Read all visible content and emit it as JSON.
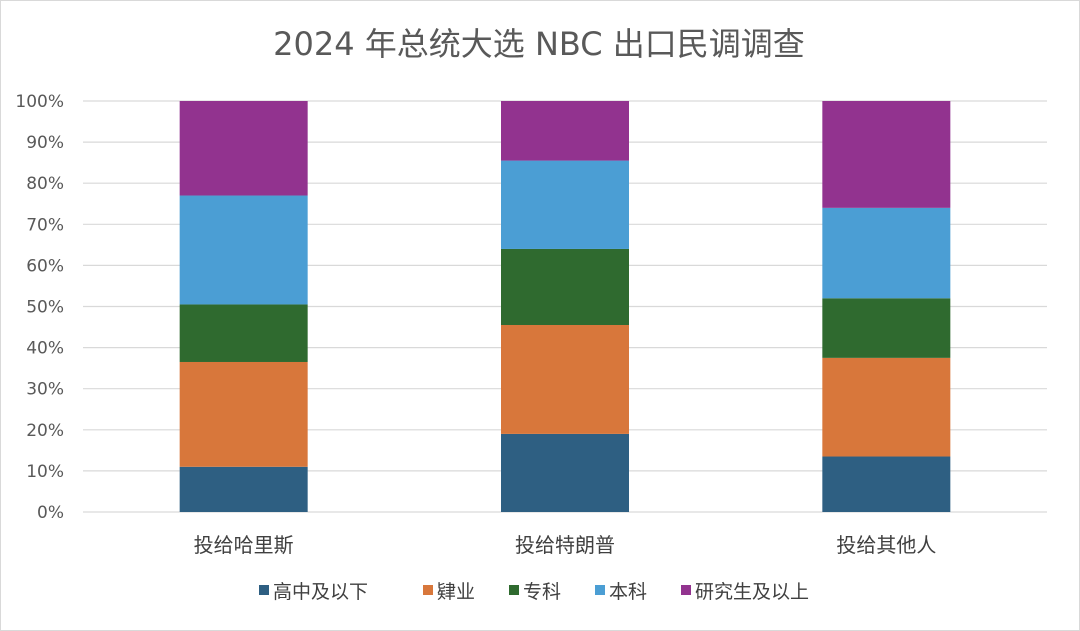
{
  "chart_data": {
    "type": "bar",
    "stacked": true,
    "percent_stacked": true,
    "title": "2024 年总统大选 NBC 出口民调调查",
    "categories": [
      "投给哈里斯",
      "投给特朗普",
      "投给其他人"
    ],
    "series": [
      {
        "name": "高中及以下",
        "color": "#2e5f82",
        "values": [
          11,
          19,
          13.5
        ]
      },
      {
        "name": "肄业",
        "color": "#d8773b",
        "values": [
          25.5,
          26.5,
          24
        ]
      },
      {
        "name": "专科",
        "color": "#2f6a2f",
        "values": [
          14,
          18.5,
          14.5
        ]
      },
      {
        "name": "本科",
        "color": "#4b9ed4",
        "values": [
          26.5,
          21.5,
          22
        ]
      },
      {
        "name": "研究生及以上",
        "color": "#92338f",
        "values": [
          23,
          14.5,
          26
        ]
      }
    ],
    "ylim": [
      0,
      100
    ],
    "yticks": [
      "0%",
      "10%",
      "20%",
      "30%",
      "40%",
      "50%",
      "60%",
      "70%",
      "80%",
      "90%",
      "100%"
    ],
    "grid": true,
    "legend_position": "bottom"
  }
}
